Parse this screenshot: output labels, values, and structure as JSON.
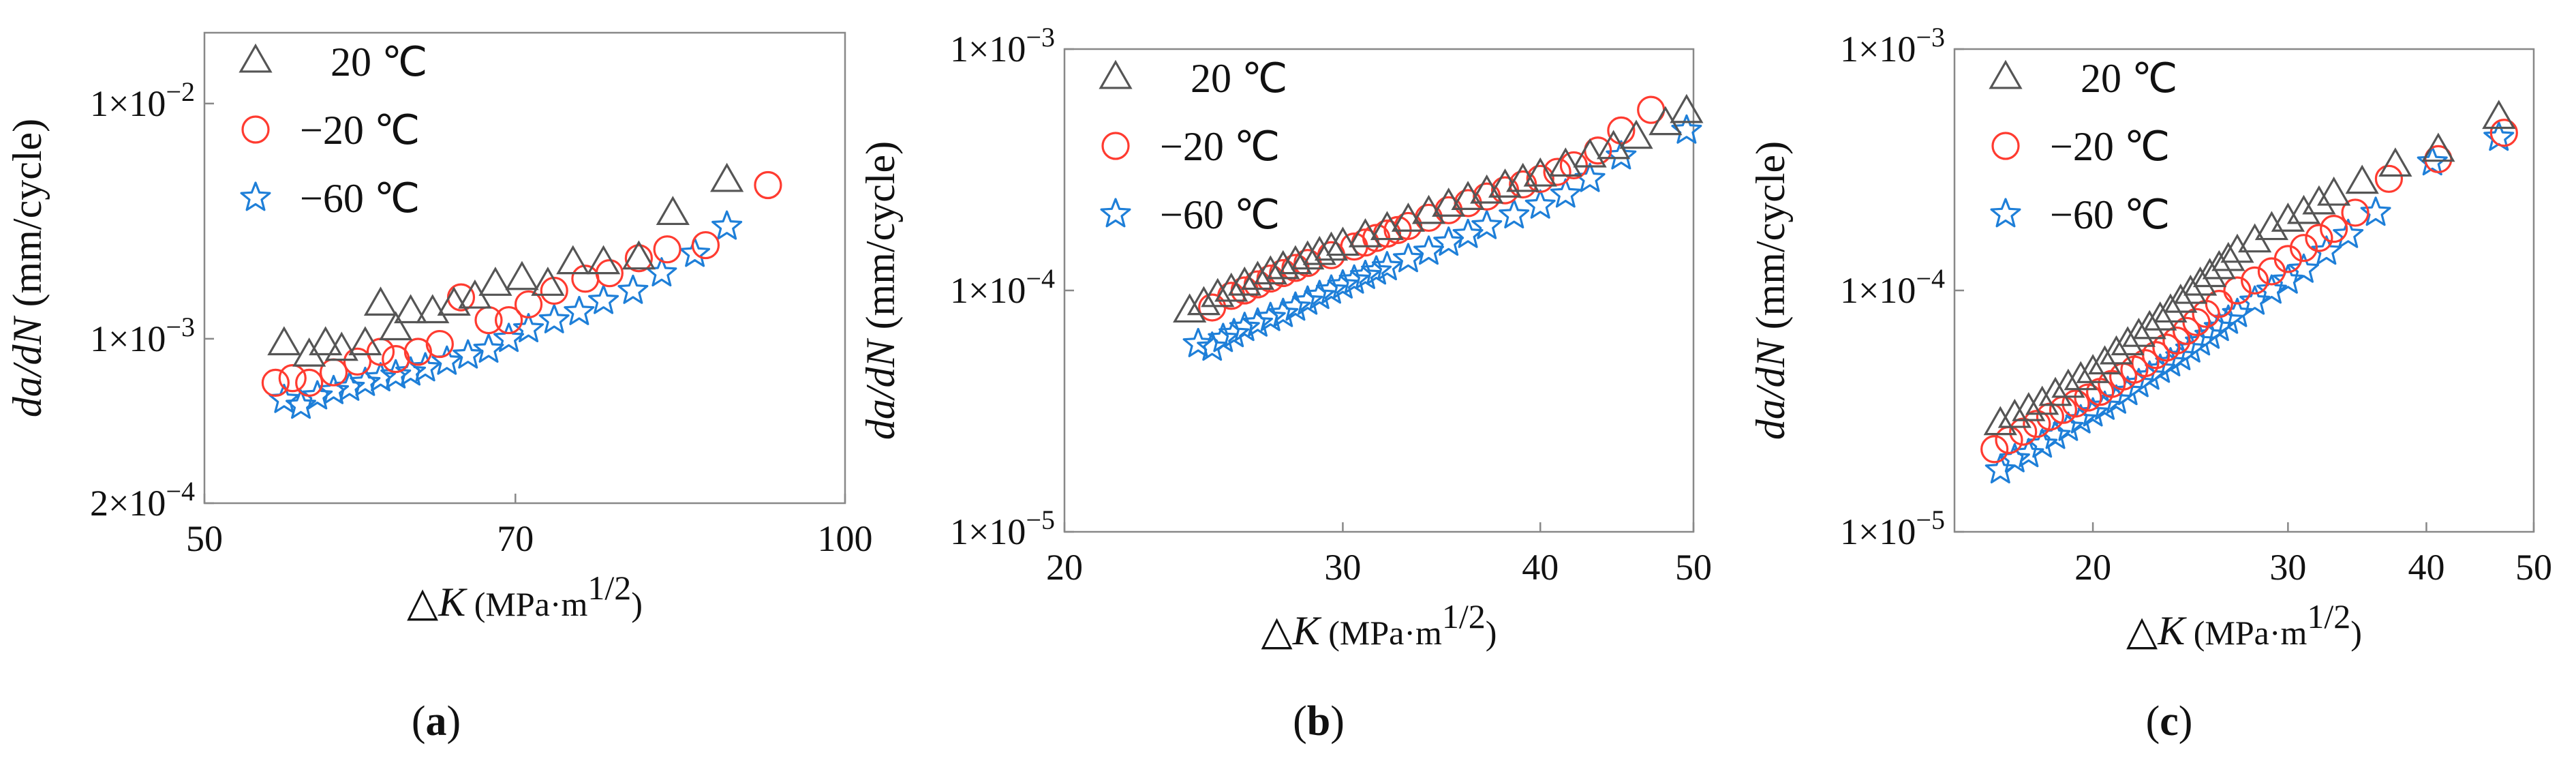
{
  "panels": [
    {
      "label": "(a)",
      "letter": "a"
    },
    {
      "label": "(b)",
      "letter": "b"
    },
    {
      "label": "(c)",
      "letter": "c"
    }
  ],
  "chart_data": [
    {
      "type": "scatter",
      "panel": "(a)",
      "x_scale": "log",
      "y_scale": "log",
      "xlim": [
        50,
        100
      ],
      "ylim": [
        0.0002,
        0.02
      ],
      "xticks": [
        50,
        70,
        100
      ],
      "xtick_labels": [
        "50",
        "70",
        "100"
      ],
      "yticks": [
        0.0002,
        0.001,
        0.01
      ],
      "ytick_labels": [
        "2×10⁻⁴",
        "1×10⁻³",
        "1×10⁻²"
      ],
      "xlabel": "△K (MPa·m1/2)",
      "ylabel": "da/dN (mm/cycle)",
      "legend": "top-left",
      "series": [
        {
          "name": "20 ℃",
          "marker": "triangle",
          "color": "#555555",
          "x": [
            54.5,
            56,
            57,
            58,
            59.5,
            60.5,
            61.5,
            62.5,
            64,
            65.5,
            67,
            68.5,
            70.5,
            72.5,
            74.5,
            77,
            80,
            83,
            88
          ],
          "y": [
            0.00095,
            0.00085,
            0.00095,
            0.0009,
            0.00095,
            0.0014,
            0.0011,
            0.0013,
            0.0013,
            0.0014,
            0.0015,
            0.0017,
            0.0018,
            0.0017,
            0.0021,
            0.0021,
            0.0022,
            0.0034,
            0.0047
          ]
        },
        {
          "name": "−20 ℃",
          "marker": "circle",
          "color": "#ff3b30",
          "x": [
            54,
            55,
            56,
            57.5,
            59,
            60.5,
            61.5,
            63,
            64.5,
            66,
            68,
            69.5,
            71,
            73,
            75.5,
            77.5,
            80,
            82.5,
            86,
            92
          ],
          "y": [
            0.00065,
            0.00068,
            0.00065,
            0.00072,
            0.0008,
            0.00088,
            0.00082,
            0.00088,
            0.00095,
            0.0015,
            0.0012,
            0.0012,
            0.0014,
            0.0016,
            0.0018,
            0.0019,
            0.0022,
            0.0024,
            0.0025,
            0.0045
          ]
        },
        {
          "name": "−60 ℃",
          "marker": "star",
          "color": "#1e7fd8",
          "x": [
            54.5,
            55.5,
            56.5,
            57.5,
            58.5,
            59.5,
            60.5,
            61.5,
            62.5,
            63.5,
            65,
            66.5,
            68,
            69.5,
            71,
            73,
            75,
            77,
            79.5,
            82,
            85,
            88
          ],
          "y": [
            0.00055,
            0.00052,
            0.00057,
            0.0006,
            0.00062,
            0.00065,
            0.00068,
            0.0007,
            0.00072,
            0.00075,
            0.0008,
            0.00085,
            0.0009,
            0.001,
            0.0011,
            0.0012,
            0.0013,
            0.00145,
            0.0016,
            0.0019,
            0.0023,
            0.003
          ]
        }
      ]
    },
    {
      "type": "scatter",
      "panel": "(b)",
      "x_scale": "log",
      "y_scale": "log",
      "xlim": [
        20,
        50
      ],
      "ylim": [
        1e-05,
        0.001
      ],
      "xticks": [
        20,
        30,
        40,
        50
      ],
      "xtick_labels": [
        "20",
        "30",
        "40",
        "50"
      ],
      "yticks": [
        1e-05,
        0.0001,
        0.001
      ],
      "ytick_labels": [
        "1×10⁻⁵",
        "1×10⁻⁴",
        "1×10⁻³"
      ],
      "xlabel": "△K (MPa·m1/2)",
      "ylabel": "da/dN (mm/cycle)",
      "legend": "top-left",
      "series": [
        {
          "name": "20 ℃",
          "marker": "triangle",
          "color": "#555555",
          "x": [
            24,
            24.5,
            25,
            25.5,
            26,
            26.5,
            27,
            27.5,
            28,
            28.5,
            29,
            29.5,
            30,
            31,
            32,
            33,
            34,
            35,
            36,
            37,
            38,
            39,
            40,
            41.5,
            43,
            44.5,
            46,
            48,
            49.5
          ],
          "y": [
            8.2e-05,
            8.8e-05,
            9.5e-05,
            0.0001,
            0.000106,
            0.000112,
            0.000118,
            0.000124,
            0.00013,
            0.000136,
            0.000142,
            0.000148,
            0.000155,
            0.000168,
            0.00018,
            0.000195,
            0.00021,
            0.000225,
            0.00024,
            0.000255,
            0.00027,
            0.000285,
            0.0003,
            0.00033,
            0.00036,
            0.00039,
            0.00043,
            0.00049,
            0.00055
          ]
        },
        {
          "name": "−20 ℃",
          "marker": "circle",
          "color": "#ff3b30",
          "x": [
            24.8,
            25.5,
            26,
            26.5,
            27,
            27.5,
            28,
            28.5,
            29.5,
            30.5,
            31,
            31.5,
            32,
            32.5,
            33,
            34,
            35,
            36,
            37,
            38,
            39,
            40,
            41,
            42,
            43.5,
            45,
            47
          ],
          "y": [
            8.5e-05,
            9.5e-05,
            0.0001,
            0.000106,
            0.000112,
            0.000118,
            0.000124,
            0.00013,
            0.00014,
            0.000152,
            0.000158,
            0.000165,
            0.000172,
            0.000178,
            0.000185,
            0.0002,
            0.000215,
            0.00023,
            0.000245,
            0.00026,
            0.000275,
            0.00029,
            0.00031,
            0.00033,
            0.00038,
            0.00046,
            0.00056
          ]
        },
        {
          "name": "−60 ℃",
          "marker": "star",
          "color": "#1e7fd8",
          "x": [
            24.3,
            24.8,
            25.2,
            25.6,
            26,
            26.5,
            27,
            27.5,
            28,
            28.5,
            29,
            29.5,
            30,
            30.5,
            31,
            31.5,
            32,
            33,
            34,
            35,
            36,
            37,
            38.5,
            40,
            41.5,
            43,
            45,
            49.5
          ],
          "y": [
            6e-05,
            5.8e-05,
            6.3e-05,
            6.6e-05,
            7e-05,
            7.3e-05,
            7.7e-05,
            8e-05,
            8.5e-05,
            9e-05,
            9.5e-05,
            0.0001,
            0.000105,
            0.00011,
            0.000115,
            0.00012,
            0.000125,
            0.000135,
            0.000145,
            0.000158,
            0.00017,
            0.000185,
            0.000205,
            0.000225,
            0.00025,
            0.00029,
            0.00036,
            0.00046
          ]
        }
      ]
    },
    {
      "type": "scatter",
      "panel": "(c)",
      "x_scale": "log",
      "y_scale": "log",
      "xlim": [
        15,
        50
      ],
      "ylim": [
        1e-05,
        0.001
      ],
      "xticks": [
        20,
        30,
        40,
        50
      ],
      "xtick_labels": [
        "20",
        "30",
        "40",
        "50"
      ],
      "yticks": [
        1e-05,
        0.0001,
        0.001
      ],
      "ytick_labels": [
        "1×10⁻⁵",
        "1×10⁻⁴",
        "1×10⁻³"
      ],
      "xlabel": "△K (MPa·m1/2)",
      "ylabel": "da/dN (mm/cycle)",
      "legend": "top-left",
      "series": [
        {
          "name": "20 ℃",
          "marker": "triangle",
          "color": "#555555",
          "x": [
            16.5,
            17,
            17.5,
            18,
            18.5,
            19,
            19.5,
            20,
            20.5,
            21,
            21.5,
            22,
            22.5,
            23,
            23.5,
            24,
            24.5,
            25,
            25.5,
            26,
            26.5,
            27,
            28,
            29,
            30,
            31,
            32,
            33,
            35,
            37.5,
            41,
            46.5
          ],
          "y": [
            2.8e-05,
            3e-05,
            3.2e-05,
            3.4e-05,
            3.7e-05,
            4e-05,
            4.3e-05,
            4.6e-05,
            5e-05,
            5.5e-05,
            6e-05,
            6.5e-05,
            7e-05,
            7.6e-05,
            8.2e-05,
            9e-05,
            9.8e-05,
            0.000106,
            0.000115,
            0.000124,
            0.000134,
            0.000145,
            0.00016,
            0.00018,
            0.000195,
            0.00021,
            0.00023,
            0.00025,
            0.00028,
            0.00033,
            0.00038,
            0.00052
          ]
        },
        {
          "name": "−20 ℃",
          "marker": "circle",
          "color": "#ff3b30",
          "x": [
            16.3,
            16.8,
            17.3,
            17.8,
            18.3,
            18.8,
            19.3,
            19.8,
            20.3,
            20.8,
            21.3,
            21.8,
            22.3,
            22.8,
            23.3,
            23.8,
            24.3,
            24.8,
            25.3,
            26,
            27,
            28,
            29,
            30,
            31,
            32,
            33,
            34.5,
            37,
            41,
            47
          ],
          "y": [
            2.2e-05,
            2.4e-05,
            2.6e-05,
            2.8e-05,
            3e-05,
            3.2e-05,
            3.4e-05,
            3.6e-05,
            3.8e-05,
            4.1e-05,
            4.4e-05,
            4.7e-05,
            5e-05,
            5.4e-05,
            5.8e-05,
            6.2e-05,
            6.8e-05,
            7.4e-05,
            8e-05,
            8.8e-05,
            0.0001,
            0.00011,
            0.00012,
            0.000135,
            0.00015,
            0.000165,
            0.00018,
            0.00021,
            0.00029,
            0.00035,
            0.00045
          ]
        },
        {
          "name": "−60 ℃",
          "marker": "star",
          "color": "#1e7fd8",
          "x": [
            16.5,
            17,
            17.5,
            18,
            18.5,
            19,
            19.5,
            20,
            20.5,
            21,
            21.5,
            22,
            22.5,
            23,
            23.5,
            24,
            24.5,
            25,
            25.5,
            26,
            26.5,
            27,
            28,
            29,
            30,
            31,
            32.5,
            34,
            36,
            40.5,
            46.5
          ],
          "y": [
            1.8e-05,
            2e-05,
            2.1e-05,
            2.3e-05,
            2.5e-05,
            2.7e-05,
            2.9e-05,
            3.1e-05,
            3.3e-05,
            3.5e-05,
            3.8e-05,
            4.1e-05,
            4.4e-05,
            4.7e-05,
            5e-05,
            5.3e-05,
            5.7e-05,
            6.1e-05,
            6.5e-05,
            7e-05,
            7.5e-05,
            8e-05,
            9e-05,
            0.0001,
            0.00011,
            0.000122,
            0.000145,
            0.00017,
            0.00021,
            0.00034,
            0.00043
          ]
        }
      ]
    }
  ]
}
